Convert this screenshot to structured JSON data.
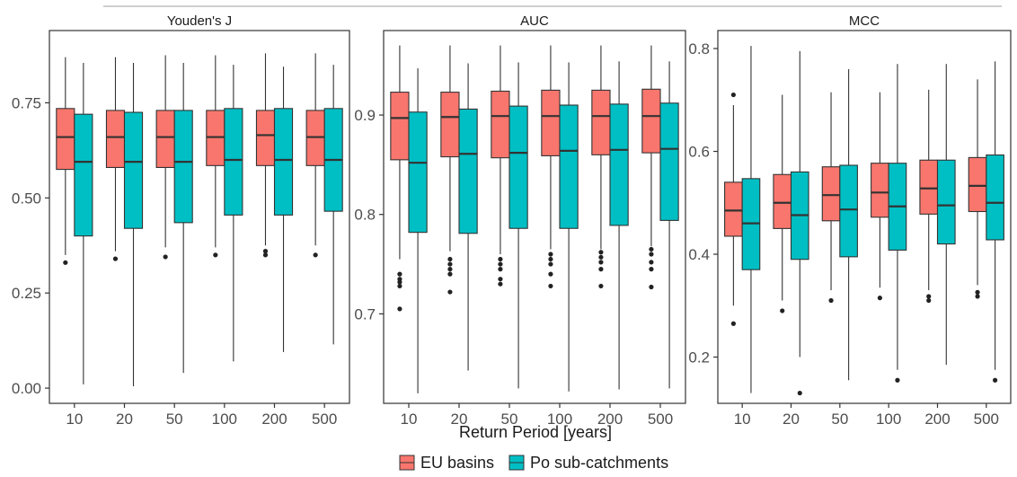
{
  "figure": {
    "xlabel": "Return Period [years]"
  },
  "legend": {
    "placement": "bottom",
    "items": [
      {
        "label": "EU basins",
        "color": "#F8766D"
      },
      {
        "label": "Po sub-catchments",
        "color": "#00BFC4"
      }
    ]
  },
  "chart_data": [
    {
      "type": "boxplot",
      "title": "Youden's J",
      "categories": [
        "10",
        "20",
        "50",
        "100",
        "200",
        "500"
      ],
      "yticks": [
        "0.00",
        "0.25",
        "0.50",
        "0.75"
      ],
      "ytick_values": [
        0.0,
        0.25,
        0.5,
        0.75
      ],
      "ylim": [
        -0.04,
        0.94
      ],
      "grid": false,
      "series": [
        {
          "name": "EU basins",
          "color": "#F8766D",
          "boxes": [
            {
              "min": 0.35,
              "q1": 0.575,
              "median": 0.66,
              "q3": 0.735,
              "max": 0.87,
              "outliers": [
                0.33
              ]
            },
            {
              "min": 0.36,
              "q1": 0.58,
              "median": 0.66,
              "q3": 0.73,
              "max": 0.87,
              "outliers": [
                0.34
              ]
            },
            {
              "min": 0.37,
              "q1": 0.58,
              "median": 0.66,
              "q3": 0.73,
              "max": 0.875,
              "outliers": [
                0.345
              ]
            },
            {
              "min": 0.37,
              "q1": 0.585,
              "median": 0.66,
              "q3": 0.73,
              "max": 0.875,
              "outliers": [
                0.35
              ]
            },
            {
              "min": 0.375,
              "q1": 0.585,
              "median": 0.665,
              "q3": 0.73,
              "max": 0.88,
              "outliers": [
                0.35,
                0.36
              ]
            },
            {
              "min": 0.375,
              "q1": 0.585,
              "median": 0.66,
              "q3": 0.73,
              "max": 0.88,
              "outliers": [
                0.35
              ]
            }
          ]
        },
        {
          "name": "Po sub-catchments",
          "color": "#00BFC4",
          "boxes": [
            {
              "min": 0.01,
              "q1": 0.4,
              "median": 0.595,
              "q3": 0.72,
              "max": 0.855,
              "outliers": []
            },
            {
              "min": 0.005,
              "q1": 0.42,
              "median": 0.595,
              "q3": 0.725,
              "max": 0.855,
              "outliers": []
            },
            {
              "min": 0.04,
              "q1": 0.435,
              "median": 0.595,
              "q3": 0.73,
              "max": 0.855,
              "outliers": []
            },
            {
              "min": 0.07,
              "q1": 0.455,
              "median": 0.6,
              "q3": 0.735,
              "max": 0.85,
              "outliers": []
            },
            {
              "min": 0.095,
              "q1": 0.455,
              "median": 0.6,
              "q3": 0.735,
              "max": 0.845,
              "outliers": []
            },
            {
              "min": 0.115,
              "q1": 0.465,
              "median": 0.6,
              "q3": 0.735,
              "max": 0.85,
              "outliers": []
            }
          ]
        }
      ]
    },
    {
      "type": "boxplot",
      "title": "AUC",
      "categories": [
        "10",
        "20",
        "50",
        "100",
        "200",
        "500"
      ],
      "yticks": [
        "0.7",
        "0.8",
        "0.9"
      ],
      "ytick_values": [
        0.7,
        0.8,
        0.9
      ],
      "ylim": [
        0.61,
        0.985
      ],
      "grid": false,
      "series": [
        {
          "name": "EU basins",
          "color": "#F8766D",
          "boxes": [
            {
              "min": 0.755,
              "q1": 0.855,
              "median": 0.897,
              "q3": 0.923,
              "max": 0.97,
              "outliers": [
                0.705,
                0.728,
                0.732,
                0.735,
                0.74
              ]
            },
            {
              "min": 0.763,
              "q1": 0.858,
              "median": 0.898,
              "q3": 0.923,
              "max": 0.97,
              "outliers": [
                0.722,
                0.74,
                0.745,
                0.75,
                0.755
              ]
            },
            {
              "min": 0.76,
              "q1": 0.857,
              "median": 0.899,
              "q3": 0.924,
              "max": 0.97,
              "outliers": [
                0.73,
                0.735,
                0.745,
                0.75,
                0.755
              ]
            },
            {
              "min": 0.765,
              "q1": 0.859,
              "median": 0.899,
              "q3": 0.925,
              "max": 0.97,
              "outliers": [
                0.728,
                0.74,
                0.75,
                0.755,
                0.76
              ]
            },
            {
              "min": 0.765,
              "q1": 0.86,
              "median": 0.899,
              "q3": 0.925,
              "max": 0.97,
              "outliers": [
                0.728,
                0.745,
                0.752,
                0.757,
                0.762
              ]
            },
            {
              "min": 0.768,
              "q1": 0.862,
              "median": 0.899,
              "q3": 0.926,
              "max": 0.97,
              "outliers": [
                0.727,
                0.745,
                0.752,
                0.76,
                0.765
              ]
            }
          ]
        },
        {
          "name": "Po sub-catchments",
          "color": "#00BFC4",
          "boxes": [
            {
              "min": 0.62,
              "q1": 0.782,
              "median": 0.852,
              "q3": 0.903,
              "max": 0.947,
              "outliers": []
            },
            {
              "min": 0.643,
              "q1": 0.781,
              "median": 0.861,
              "q3": 0.906,
              "max": 0.952,
              "outliers": []
            },
            {
              "min": 0.625,
              "q1": 0.786,
              "median": 0.862,
              "q3": 0.909,
              "max": 0.953,
              "outliers": []
            },
            {
              "min": 0.622,
              "q1": 0.786,
              "median": 0.864,
              "q3": 0.91,
              "max": 0.953,
              "outliers": []
            },
            {
              "min": 0.624,
              "q1": 0.789,
              "median": 0.865,
              "q3": 0.911,
              "max": 0.954,
              "outliers": []
            },
            {
              "min": 0.625,
              "q1": 0.794,
              "median": 0.866,
              "q3": 0.912,
              "max": 0.954,
              "outliers": []
            }
          ]
        }
      ]
    },
    {
      "type": "boxplot",
      "title": "MCC",
      "categories": [
        "10",
        "20",
        "50",
        "100",
        "200",
        "500"
      ],
      "yticks": [
        "0.2",
        "0.4",
        "0.6",
        "0.8"
      ],
      "ytick_values": [
        0.2,
        0.4,
        0.6,
        0.8
      ],
      "ylim": [
        0.11,
        0.835
      ],
      "grid": false,
      "series": [
        {
          "name": "EU basins",
          "color": "#F8766D",
          "boxes": [
            {
              "min": 0.3,
              "q1": 0.435,
              "median": 0.485,
              "q3": 0.54,
              "max": 0.69,
              "outliers": [
                0.265,
                0.71
              ]
            },
            {
              "min": 0.31,
              "q1": 0.45,
              "median": 0.5,
              "q3": 0.555,
              "max": 0.71,
              "outliers": [
                0.29
              ]
            },
            {
              "min": 0.33,
              "q1": 0.465,
              "median": 0.515,
              "q3": 0.57,
              "max": 0.715,
              "outliers": [
                0.31
              ]
            },
            {
              "min": 0.335,
              "q1": 0.472,
              "median": 0.52,
              "q3": 0.577,
              "max": 0.715,
              "outliers": [
                0.315
              ]
            },
            {
              "min": 0.33,
              "q1": 0.478,
              "median": 0.528,
              "q3": 0.583,
              "max": 0.72,
              "outliers": [
                0.31,
                0.318
              ]
            },
            {
              "min": 0.34,
              "q1": 0.483,
              "median": 0.533,
              "q3": 0.588,
              "max": 0.74,
              "outliers": [
                0.318,
                0.326
              ]
            }
          ]
        },
        {
          "name": "Po sub-catchments",
          "color": "#00BFC4",
          "boxes": [
            {
              "min": 0.13,
              "q1": 0.37,
              "median": 0.46,
              "q3": 0.547,
              "max": 0.805,
              "outliers": []
            },
            {
              "min": 0.2,
              "q1": 0.39,
              "median": 0.476,
              "q3": 0.56,
              "max": 0.795,
              "outliers": [
                0.13
              ]
            },
            {
              "min": 0.155,
              "q1": 0.395,
              "median": 0.487,
              "q3": 0.573,
              "max": 0.76,
              "outliers": []
            },
            {
              "min": 0.175,
              "q1": 0.408,
              "median": 0.493,
              "q3": 0.577,
              "max": 0.77,
              "outliers": [
                0.155
              ]
            },
            {
              "min": 0.185,
              "q1": 0.42,
              "median": 0.495,
              "q3": 0.583,
              "max": 0.77,
              "outliers": []
            },
            {
              "min": 0.175,
              "q1": 0.428,
              "median": 0.5,
              "q3": 0.593,
              "max": 0.775,
              "outliers": [
                0.155
              ]
            }
          ]
        }
      ]
    }
  ]
}
